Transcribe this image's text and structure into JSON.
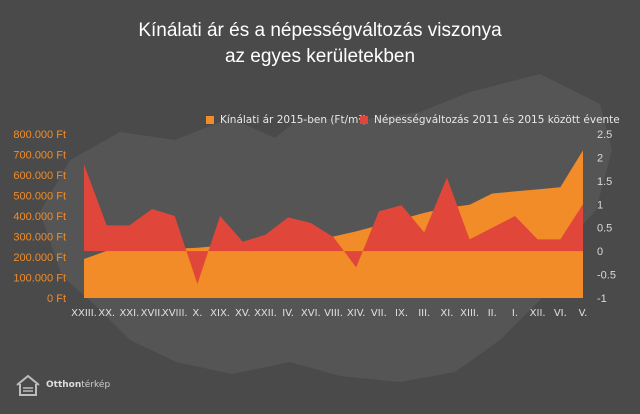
{
  "title": {
    "line1": "Kínálati ár és a népességváltozás viszonya",
    "line2": "az egyes kerületekben"
  },
  "brand": {
    "name_bold": "Otthon",
    "name_rest": "térkép",
    "icon": "house-icon"
  },
  "colors": {
    "background": "#4a4a4a",
    "price": "#f28c28",
    "population": "#e0473a",
    "left_axis_text": "#f28c28",
    "right_axis_text": "#d9d9d9"
  },
  "chart_data": {
    "type": "area",
    "categories": [
      "XXIII.",
      "XX.",
      "XXI.",
      "XVII.",
      "XVIII.",
      "X.",
      "XIX.",
      "XV.",
      "XXII.",
      "IV.",
      "XVI.",
      "VIII.",
      "XIV.",
      "VII.",
      "IX.",
      "III.",
      "XI.",
      "XIII.",
      "II.",
      "I.",
      "XII.",
      "VI.",
      "V."
    ],
    "series": [
      {
        "name": "Kínálati ár 2015-ben (Ft/m²)",
        "axis": "left",
        "values": [
          190000,
          230000,
          230000,
          235000,
          240000,
          245000,
          255000,
          265000,
          275000,
          280000,
          285000,
          300000,
          325000,
          355000,
          385000,
          415000,
          440000,
          455000,
          510000,
          520000,
          530000,
          540000,
          720000
        ]
      },
      {
        "name": "Népességváltozás 2011 és 2015 között évente",
        "axis": "right",
        "values": [
          1.85,
          0.55,
          0.55,
          0.9,
          0.75,
          -0.7,
          0.75,
          0.2,
          0.35,
          0.72,
          0.6,
          0.3,
          -0.35,
          0.85,
          0.98,
          0.4,
          1.57,
          0.25,
          0.5,
          0.75,
          0.25,
          0.25,
          1.0
        ]
      }
    ],
    "y_left": {
      "ticks": [
        "0 Ft",
        "100.000 Ft",
        "200.000 Ft",
        "300.000 Ft",
        "400.000 Ft",
        "500.000 Ft",
        "600.000 Ft",
        "700.000 Ft",
        "800.000 Ft"
      ],
      "min": 0,
      "max": 800000
    },
    "y_right": {
      "ticks": [
        "-1",
        "-0.5",
        "0",
        "0.5",
        "1",
        "1.5",
        "2",
        "2.5"
      ],
      "min": -1,
      "max": 2.5
    },
    "legend_position": "top-right",
    "grid": false
  }
}
